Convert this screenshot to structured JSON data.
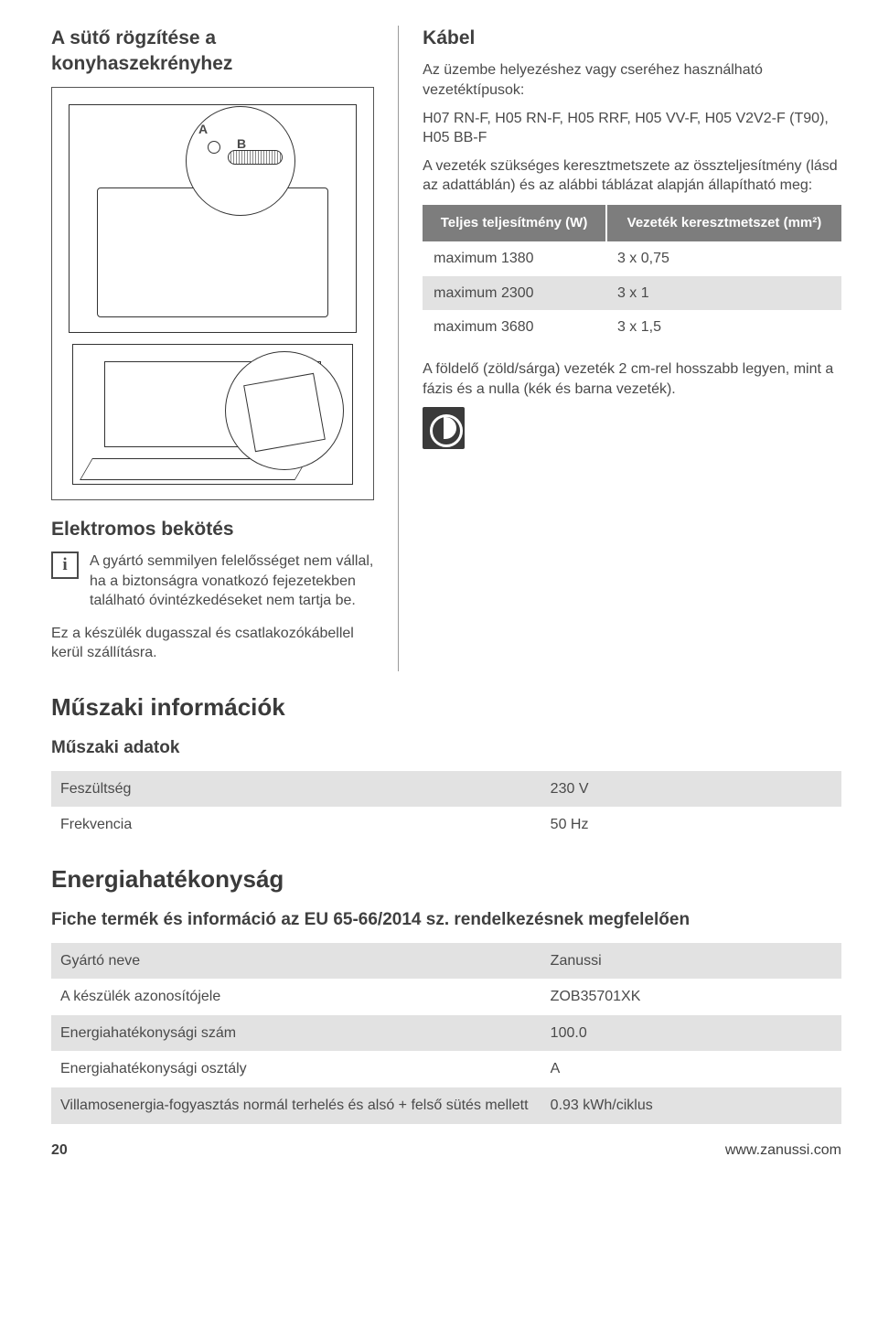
{
  "left": {
    "title": "A sütő rögzítése a konyhaszekrényhez",
    "diag": {
      "a": "A",
      "b": "B"
    },
    "elec_title": "Elektromos bekötés",
    "info_text": "A gyártó semmilyen felelősséget nem vállal, ha a biztonságra vonatkozó fejezetekben található óvintézkedéseket nem tartja be.",
    "plug_text": "Ez a készülék dugasszal és csatlakozókábellel kerül szállításra."
  },
  "right": {
    "title": "Kábel",
    "intro": "Az üzembe helyezéshez vagy cseréhez használható vezetéktípusok:",
    "types": "H07 RN-F, H05 RN-F, H05 RRF, H05 VV-F, H05 V2V2-F (T90), H05 BB-F",
    "cross_intro": "A vezeték szükséges keresztmetszete az összteljesítmény (lásd az adattáblán) és az alábbi táblázat alapján állapítható meg:",
    "table": {
      "h1": "Teljes teljesítmény (W)",
      "h2": "Vezeték keresztmetszet (mm²)",
      "rows": [
        {
          "c1": "maximum 1380",
          "c2": "3 x 0,75"
        },
        {
          "c1": "maximum 2300",
          "c2": "3 x 1"
        },
        {
          "c1": "maximum 3680",
          "c2": "3 x 1,5"
        }
      ]
    },
    "ground_note": "A földelő (zöld/sárga) vezeték 2 cm-rel hosszabb legyen, mint a fázis és a nulla (kék és barna vezeték)."
  },
  "tech": {
    "title": "Műszaki információk",
    "sub": "Műszaki adatok",
    "rows": [
      {
        "c1": "Feszültség",
        "c2": "230 V",
        "shade": true
      },
      {
        "c1": "Frekvencia",
        "c2": "50 Hz",
        "shade": false
      }
    ]
  },
  "energy": {
    "title": "Energiahatékonyság",
    "sub": "Fiche termék és információ az EU 65-66/2014 sz. rendelkezésnek megfelelően",
    "rows": [
      {
        "c1": "Gyártó neve",
        "c2": "Zanussi",
        "shade": true
      },
      {
        "c1": "A készülék azonosítójele",
        "c2": "ZOB35701XK",
        "shade": false
      },
      {
        "c1": "Energiahatékonysági szám",
        "c2": "100.0",
        "shade": true
      },
      {
        "c1": "Energiahatékonysági osztály",
        "c2": "A",
        "shade": false
      },
      {
        "c1": "Villamosenergia-fogyasztás normál terhelés és alsó + felső sütés mellett",
        "c2": "0.93 kWh/ciklus",
        "shade": true
      }
    ]
  },
  "footer": {
    "page": "20",
    "url": "www.zanussi.com"
  }
}
